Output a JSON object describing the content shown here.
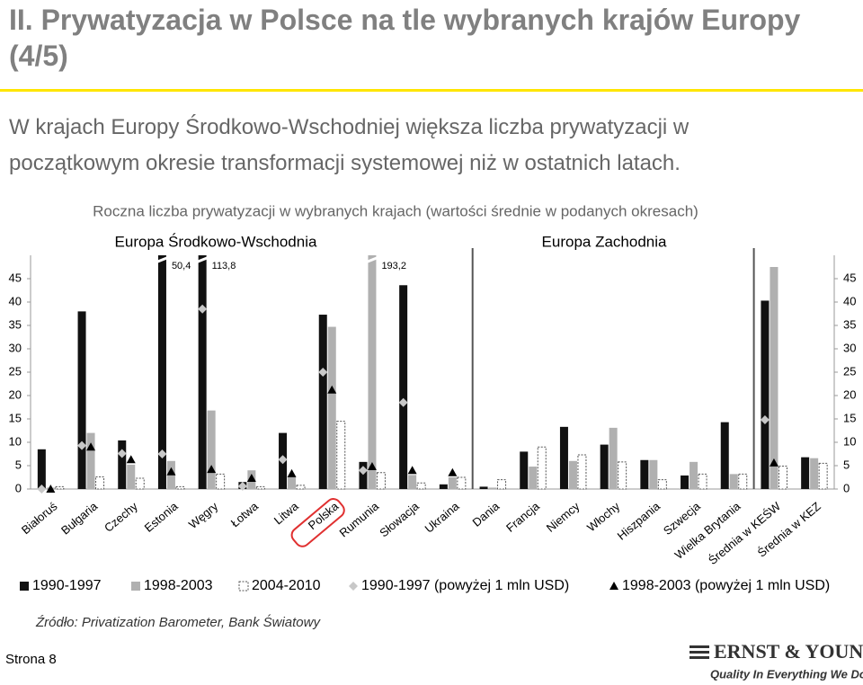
{
  "header": {
    "title": "II. Prywatyzacja w Polsce na tle wybranych krajów Europy (4/5)",
    "lead": "W krajach Europy Środkowo-Wschodniej większa liczba prywatyzacji w początkowym okresie transformacji systemowej niż w ostatnich latach."
  },
  "chart_data": {
    "type": "bar",
    "title": "Roczna liczba prywatyzacji w wybranych krajach (wartości średnie w podanych okresach)",
    "groups": [
      "Europa Środkowo-Wschodnia",
      "Europa Zachodnia"
    ],
    "categories": [
      "Białoruś",
      "Bułgaria",
      "Czechy",
      "Estonia",
      "Węgry",
      "Łotwa",
      "Litwa",
      "Polska",
      "Rumunia",
      "Słowacja",
      "Ukraina",
      "Dania",
      "Francja",
      "Niemcy",
      "Włochy",
      "Hiszpania",
      "Szwecja",
      "Wielka Brytania",
      "Średnia w KEŚW",
      "Średnia w KEZ"
    ],
    "series": [
      {
        "name": "1990-1997",
        "kind": "bar",
        "color": "#111111",
        "values": [
          8.5,
          38,
          10.4,
          50.4,
          113.8,
          1.5,
          12,
          37.3,
          5.8,
          43.6,
          1,
          0.5,
          8,
          13.3,
          9.5,
          6.2,
          2.9,
          14.3,
          40.3,
          6.8
        ],
        "value_labels": [
          null,
          null,
          null,
          "50,4",
          "113,8",
          null,
          null,
          null,
          null,
          null,
          null,
          null,
          null,
          null,
          null,
          null,
          null,
          null,
          null,
          null
        ]
      },
      {
        "name": "1998-2003",
        "kind": "bar",
        "color": "#b0b0b0",
        "values": [
          0.3,
          12,
          5.2,
          6,
          16.8,
          4,
          2.5,
          34.7,
          193.2,
          3,
          2.5,
          0.3,
          4.8,
          6,
          13.1,
          6.2,
          5.8,
          3.2,
          47.5,
          6.6
        ],
        "value_labels": [
          null,
          null,
          null,
          null,
          null,
          null,
          null,
          null,
          "193,2",
          null,
          null,
          null,
          null,
          null,
          null,
          null,
          null,
          null,
          null,
          null
        ]
      },
      {
        "name": "2004-2010",
        "kind": "bar",
        "color": "#ffffff",
        "values": [
          0.5,
          2.6,
          2.3,
          0.5,
          3.2,
          0.5,
          0.8,
          14.5,
          3.5,
          1.3,
          2.5,
          2,
          9,
          7.3,
          5.8,
          2,
          3.2,
          3.2,
          4.9,
          5.5
        ]
      },
      {
        "name": "1990-1997 (powyżej 1 mln USD)",
        "kind": "diamond",
        "color": "#c8c8c8",
        "values": [
          0,
          9.3,
          7.6,
          7.5,
          38.5,
          0.6,
          6.3,
          25,
          4,
          18.5,
          null,
          null,
          null,
          null,
          null,
          null,
          null,
          null,
          14.8,
          null
        ]
      },
      {
        "name": "1998-2003 (powyżej 1 mln USD)",
        "kind": "triangle",
        "color": "#000000",
        "values": [
          0,
          9,
          6.3,
          3.7,
          4.2,
          2.3,
          3.3,
          21.2,
          4.8,
          4,
          3.5,
          null,
          null,
          null,
          null,
          null,
          null,
          null,
          5.6,
          null
        ]
      }
    ],
    "ylim": [
      0,
      50
    ],
    "yticks": [
      0,
      5,
      10,
      15,
      20,
      25,
      30,
      35,
      40,
      45
    ],
    "source": "Źródło: Privatization Barometer, Bank Światowy"
  },
  "footer": {
    "page": "Strona 8",
    "brand": "ERNST & YOUNG",
    "slogan": "Quality In Everything We Do"
  }
}
